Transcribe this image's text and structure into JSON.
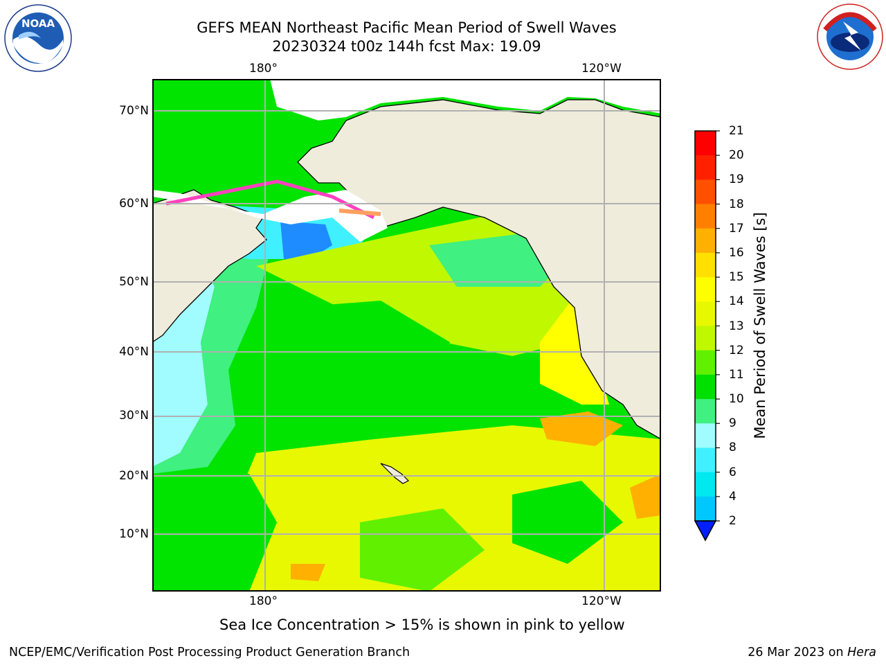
{
  "title": {
    "line1": "GEFS MEAN Northeast Pacific Mean Period of Swell Waves",
    "line2": "20230324 t00z 144h fcst   Max: 19.09"
  },
  "axes": {
    "lon_labels": [
      "180°",
      "120°W"
    ],
    "lat_labels": [
      "70°N",
      "60°N",
      "50°N",
      "40°N",
      "30°N",
      "20°N",
      "10°N"
    ]
  },
  "colorbar": {
    "title": "Mean Period of Swell Waves [s]",
    "ticks": [
      "2",
      "4",
      "6",
      "8",
      "9",
      "10",
      "11",
      "12",
      "13",
      "14",
      "15",
      "16",
      "17",
      "18",
      "19",
      "20",
      "21"
    ],
    "colors": [
      "#0060ff",
      "#0090ff",
      "#00c8ff",
      "#00e8f0",
      "#40f0ff",
      "#a0fcff",
      "#40f080",
      "#00e000",
      "#60f000",
      "#c0f800",
      "#e8f800",
      "#ffff00",
      "#ffe000",
      "#ffb000",
      "#ff8000",
      "#ff5000",
      "#ff2000",
      "#ff0000"
    ]
  },
  "note": "Sea Ice Concentration > 15% is shown in pink to yellow",
  "footer": {
    "left": "NCEP/EMC/Verification Post Processing Product Generation Branch",
    "date": "26 Mar 2023 on",
    "machine": "Hera"
  },
  "logos": {
    "left": "NOAA",
    "right": "NATIONAL WEATHER SERVICE"
  }
}
